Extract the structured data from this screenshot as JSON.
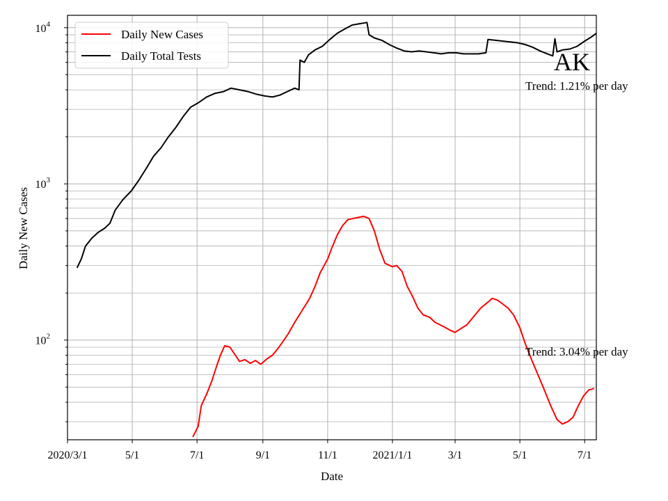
{
  "chart_data": {
    "type": "line",
    "xlabel": "Date",
    "ylabel": "Daily New Cases",
    "yscale": "log",
    "ylim": [
      23,
      12000
    ],
    "xlim": [
      "2020-03-01",
      "2021-07-12"
    ],
    "grid": "on (major and minor)",
    "legend_placement": "top-left",
    "state_label": "AK",
    "x_ticks": [
      {
        "date": "2020-03-01",
        "label": "2020/3/1"
      },
      {
        "date": "2020-05-01",
        "label": "5/1"
      },
      {
        "date": "2020-07-01",
        "label": "7/1"
      },
      {
        "date": "2020-09-01",
        "label": "9/1"
      },
      {
        "date": "2020-11-01",
        "label": "11/1"
      },
      {
        "date": "2021-01-01",
        "label": "2021/1/1"
      },
      {
        "date": "2021-03-01",
        "label": "3/1"
      },
      {
        "date": "2021-05-01",
        "label": "5/1"
      },
      {
        "date": "2021-07-01",
        "label": "7/1"
      }
    ],
    "y_ticks": [
      {
        "value": 100,
        "base": "10",
        "exp": "2"
      },
      {
        "value": 1000,
        "base": "10",
        "exp": "3"
      },
      {
        "value": 10000,
        "base": "10",
        "exp": "4"
      }
    ],
    "series": [
      {
        "name": "Daily New Cases",
        "color": "#ff0000",
        "points": [
          [
            "2020-06-27",
            24
          ],
          [
            "2020-07-02",
            28
          ],
          [
            "2020-07-05",
            38
          ],
          [
            "2020-07-10",
            45
          ],
          [
            "2020-07-15",
            55
          ],
          [
            "2020-07-20",
            70
          ],
          [
            "2020-07-23",
            80
          ],
          [
            "2020-07-27",
            92
          ],
          [
            "2020-08-01",
            90
          ],
          [
            "2020-08-05",
            82
          ],
          [
            "2020-08-10",
            73
          ],
          [
            "2020-08-15",
            75
          ],
          [
            "2020-08-20",
            71
          ],
          [
            "2020-08-25",
            74
          ],
          [
            "2020-08-30",
            70
          ],
          [
            "2020-09-05",
            76
          ],
          [
            "2020-09-10",
            80
          ],
          [
            "2020-09-15",
            88
          ],
          [
            "2020-09-20",
            98
          ],
          [
            "2020-09-25",
            110
          ],
          [
            "2020-10-01",
            130
          ],
          [
            "2020-10-08",
            155
          ],
          [
            "2020-10-15",
            185
          ],
          [
            "2020-10-20",
            220
          ],
          [
            "2020-10-25",
            270
          ],
          [
            "2020-11-01",
            330
          ],
          [
            "2020-11-05",
            390
          ],
          [
            "2020-11-10",
            470
          ],
          [
            "2020-11-15",
            540
          ],
          [
            "2020-11-20",
            590
          ],
          [
            "2020-11-25",
            600
          ],
          [
            "2020-11-30",
            610
          ],
          [
            "2020-12-05",
            620
          ],
          [
            "2020-12-10",
            600
          ],
          [
            "2020-12-15",
            500
          ],
          [
            "2020-12-20",
            380
          ],
          [
            "2020-12-25",
            310
          ],
          [
            "2021-01-01",
            295
          ],
          [
            "2021-01-05",
            300
          ],
          [
            "2021-01-10",
            275
          ],
          [
            "2021-01-15",
            220
          ],
          [
            "2021-01-20",
            190
          ],
          [
            "2021-01-25",
            160
          ],
          [
            "2021-01-30",
            145
          ],
          [
            "2021-02-05",
            140
          ],
          [
            "2021-02-10",
            130
          ],
          [
            "2021-02-15",
            125
          ],
          [
            "2021-02-20",
            120
          ],
          [
            "2021-02-25",
            115
          ],
          [
            "2021-03-01",
            112
          ],
          [
            "2021-03-06",
            118
          ],
          [
            "2021-03-12",
            125
          ],
          [
            "2021-03-18",
            140
          ],
          [
            "2021-03-25",
            160
          ],
          [
            "2021-04-01",
            175
          ],
          [
            "2021-04-05",
            185
          ],
          [
            "2021-04-10",
            180
          ],
          [
            "2021-04-15",
            170
          ],
          [
            "2021-04-20",
            160
          ],
          [
            "2021-04-25",
            145
          ],
          [
            "2021-05-01",
            120
          ],
          [
            "2021-05-06",
            95
          ],
          [
            "2021-05-12",
            75
          ],
          [
            "2021-05-18",
            60
          ],
          [
            "2021-05-24",
            48
          ],
          [
            "2021-05-30",
            38
          ],
          [
            "2021-06-05",
            31
          ],
          [
            "2021-06-10",
            29
          ],
          [
            "2021-06-15",
            30
          ],
          [
            "2021-06-20",
            32
          ],
          [
            "2021-06-25",
            38
          ],
          [
            "2021-06-30",
            44
          ],
          [
            "2021-07-05",
            48
          ],
          [
            "2021-07-10",
            49
          ]
        ]
      },
      {
        "name": "Daily Total Tests",
        "color": "#000000",
        "points": [
          [
            "2020-03-10",
            290
          ],
          [
            "2020-03-14",
            330
          ],
          [
            "2020-03-18",
            400
          ],
          [
            "2020-03-24",
            450
          ],
          [
            "2020-03-30",
            490
          ],
          [
            "2020-04-05",
            520
          ],
          [
            "2020-04-10",
            560
          ],
          [
            "2020-04-15",
            680
          ],
          [
            "2020-04-22",
            790
          ],
          [
            "2020-04-30",
            900
          ],
          [
            "2020-05-07",
            1050
          ],
          [
            "2020-05-14",
            1250
          ],
          [
            "2020-05-21",
            1500
          ],
          [
            "2020-05-28",
            1700
          ],
          [
            "2020-06-04",
            2000
          ],
          [
            "2020-06-11",
            2300
          ],
          [
            "2020-06-18",
            2700
          ],
          [
            "2020-06-25",
            3100
          ],
          [
            "2020-07-02",
            3300
          ],
          [
            "2020-07-10",
            3600
          ],
          [
            "2020-07-18",
            3800
          ],
          [
            "2020-07-26",
            3900
          ],
          [
            "2020-08-02",
            4100
          ],
          [
            "2020-08-10",
            4000
          ],
          [
            "2020-08-18",
            3900
          ],
          [
            "2020-08-26",
            3750
          ],
          [
            "2020-09-03",
            3650
          ],
          [
            "2020-09-10",
            3600
          ],
          [
            "2020-09-17",
            3700
          ],
          [
            "2020-09-24",
            3900
          ],
          [
            "2020-10-01",
            4100
          ],
          [
            "2020-10-05",
            4000
          ],
          [
            "2020-10-06",
            6200
          ],
          [
            "2020-10-10",
            6000
          ],
          [
            "2020-10-14",
            6700
          ],
          [
            "2020-10-20",
            7200
          ],
          [
            "2020-10-27",
            7600
          ],
          [
            "2020-11-03",
            8400
          ],
          [
            "2020-11-10",
            9200
          ],
          [
            "2020-11-17",
            9800
          ],
          [
            "2020-11-24",
            10400
          ],
          [
            "2020-12-01",
            10600
          ],
          [
            "2020-12-08",
            10800
          ],
          [
            "2020-12-10",
            9000
          ],
          [
            "2020-12-15",
            8600
          ],
          [
            "2020-12-22",
            8300
          ],
          [
            "2020-12-29",
            7800
          ],
          [
            "2021-01-05",
            7400
          ],
          [
            "2021-01-12",
            7100
          ],
          [
            "2021-01-19",
            7000
          ],
          [
            "2021-01-26",
            7100
          ],
          [
            "2021-02-02",
            7000
          ],
          [
            "2021-02-09",
            6900
          ],
          [
            "2021-02-16",
            6800
          ],
          [
            "2021-02-23",
            6900
          ],
          [
            "2021-03-02",
            6900
          ],
          [
            "2021-03-09",
            6800
          ],
          [
            "2021-03-16",
            6800
          ],
          [
            "2021-03-23",
            6800
          ],
          [
            "2021-03-30",
            6900
          ],
          [
            "2021-04-01",
            8400
          ],
          [
            "2021-04-08",
            8300
          ],
          [
            "2021-04-15",
            8200
          ],
          [
            "2021-04-22",
            8100
          ],
          [
            "2021-04-29",
            8000
          ],
          [
            "2021-05-06",
            7800
          ],
          [
            "2021-05-13",
            7500
          ],
          [
            "2021-05-20",
            7100
          ],
          [
            "2021-05-27",
            6800
          ],
          [
            "2021-06-01",
            6600
          ],
          [
            "2021-06-03",
            8500
          ],
          [
            "2021-06-05",
            7000
          ],
          [
            "2021-06-10",
            7200
          ],
          [
            "2021-06-17",
            7300
          ],
          [
            "2021-06-24",
            7600
          ],
          [
            "2021-07-01",
            8200
          ],
          [
            "2021-07-07",
            8700
          ],
          [
            "2021-07-12",
            9200
          ]
        ]
      }
    ],
    "annotations": [
      {
        "text": "Trend: 1.21% per day",
        "date": "2021-05-01",
        "value": 4200
      },
      {
        "text": "Trend: 3.04% per day",
        "date": "2021-05-01",
        "value": 87
      }
    ]
  }
}
